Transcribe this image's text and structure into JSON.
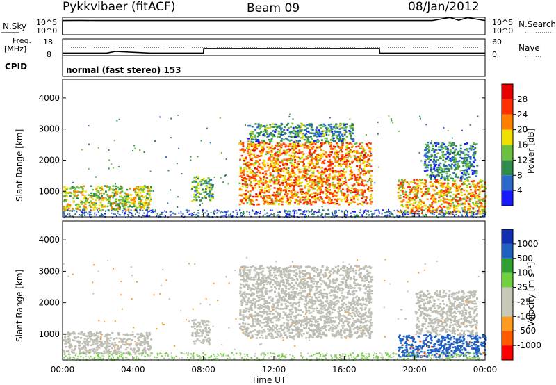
{
  "header": {
    "radar": "Pykkvibaer (fitACF)",
    "beam": "Beam 09",
    "date": "08/Jan/2012"
  },
  "strips": {
    "nsky_label": "N.Sky",
    "nsearch_label": "N.Search",
    "noise_ticks_left": [
      "10^5",
      "10^0"
    ],
    "noise_ticks_right": [
      "10^5",
      "10^0"
    ],
    "freq_label_1": "Freq.",
    "freq_label_2": "[MHz]",
    "freq_ticks": [
      "18",
      "8"
    ],
    "nave_label": "Nave",
    "nave_ticks": [
      "60",
      "0"
    ],
    "cpid_label": "CPID",
    "cpid_text": "normal (fast stereo) 153"
  },
  "colors": {
    "power_scale": [
      "#1a1aff",
      "#2b6acb",
      "#2f8c4a",
      "#6cc040",
      "#f0e000",
      "#ff8000",
      "#ff3000",
      "#e60000"
    ],
    "velocity_scale": [
      "#ff0000",
      "#ff5a00",
      "#ff9a20",
      "#c8c8b8",
      "#c8c8b8",
      "#70d040",
      "#30a030",
      "#2060c0",
      "#1030b0"
    ],
    "ground_scatter": "#bebeb4"
  },
  "chart_data": [
    {
      "type": "line",
      "title": "N.Sky / N.Search",
      "y_scale": "log",
      "ylim": [
        1,
        100000
      ],
      "x": [
        "00:00",
        "01:00",
        "02:00",
        "03:00",
        "04:00",
        "05:00",
        "06:00",
        "07:00",
        "08:00",
        "09:00",
        "10:00",
        "11:00",
        "12:00",
        "13:00",
        "14:00",
        "15:00",
        "16:00",
        "17:00",
        "18:00",
        "19:00",
        "20:00",
        "21:00",
        "22:00",
        "22:30",
        "23:00",
        "24:00"
      ],
      "series": [
        {
          "name": "N.Sky",
          "values": [
            12000,
            13000,
            12000,
            12500,
            12000,
            12500,
            12000,
            12500,
            12000,
            12500,
            12000,
            12500,
            12000,
            12500,
            12000,
            12500,
            12000,
            12500,
            12000,
            12500,
            12000,
            12500,
            90000,
            15000,
            80000,
            12000
          ]
        }
      ]
    },
    {
      "type": "line",
      "title": "Freq. / Nave",
      "ylim": [
        8,
        18
      ],
      "x": [
        "00:00",
        "02:30",
        "03:00",
        "05:00",
        "08:00",
        "08:01",
        "12:00",
        "16:00",
        "18:00",
        "18:01",
        "24:00"
      ],
      "series": [
        {
          "name": "Freq.",
          "values": [
            9.5,
            9.5,
            10.5,
            9.5,
            9.5,
            12.2,
            12.2,
            12.2,
            12.2,
            9.5,
            9.5
          ]
        }
      ]
    },
    {
      "type": "heatmap",
      "title": "Power",
      "xlabel": "",
      "ylabel": "Slant Range [km]",
      "x_ticks": [
        "00:00",
        "04:00",
        "08:00",
        "12:00",
        "16:00",
        "20:00",
        "00:00"
      ],
      "y_ticks": [
        "1000",
        "2000",
        "3000",
        "4000"
      ],
      "ylim": [
        180,
        4600
      ],
      "colorbar": {
        "label": "Power [dB]",
        "ticks": [
          "4",
          "8",
          "12",
          "16",
          "20",
          "24",
          "28"
        ],
        "range": [
          0,
          32
        ]
      },
      "regions": [
        {
          "t0": 0.0,
          "t1": 5.0,
          "r0": 400,
          "r1": 1200,
          "value": 16
        },
        {
          "t0": 7.3,
          "t1": 8.5,
          "r0": 700,
          "r1": 1500,
          "value": 12
        },
        {
          "t0": 10.0,
          "t1": 17.5,
          "r0": 600,
          "r1": 2600,
          "value": 22
        },
        {
          "t0": 10.5,
          "t1": 16.5,
          "r0": 2600,
          "r1": 3200,
          "value": 10
        },
        {
          "t0": 19.0,
          "t1": 24.0,
          "r0": 300,
          "r1": 1400,
          "value": 20
        },
        {
          "t0": 20.5,
          "t1": 23.5,
          "r0": 1400,
          "r1": 2600,
          "value": 9
        }
      ]
    },
    {
      "type": "heatmap",
      "title": "Velocity",
      "xlabel": "Time UT",
      "ylabel": "Slant Range [km]",
      "x_ticks": [
        "00:00",
        "04:00",
        "08:00",
        "12:00",
        "16:00",
        "20:00",
        "00:00"
      ],
      "y_ticks": [
        "1000",
        "2000",
        "3000",
        "4000"
      ],
      "ylim": [
        180,
        4600
      ],
      "colorbar": {
        "label": "Velocity [m s⁻¹]",
        "ticks": [
          "1000",
          "500",
          "100",
          "25",
          "-25",
          "-100",
          "-500",
          "-1000"
        ]
      },
      "regions": [
        {
          "t0": 0.0,
          "t1": 5.0,
          "r0": 400,
          "r1": 1100,
          "value": "ground"
        },
        {
          "t0": 7.3,
          "t1": 8.3,
          "r0": 700,
          "r1": 1500,
          "value": "ground"
        },
        {
          "t0": 10.0,
          "t1": 17.5,
          "r0": 900,
          "r1": 3200,
          "value": "ground"
        },
        {
          "t0": 19.0,
          "t1": 24.0,
          "r0": 300,
          "r1": 1000,
          "value": 150
        },
        {
          "t0": 20.0,
          "t1": 23.5,
          "r0": 1000,
          "r1": 2400,
          "value": "ground"
        }
      ]
    }
  ]
}
